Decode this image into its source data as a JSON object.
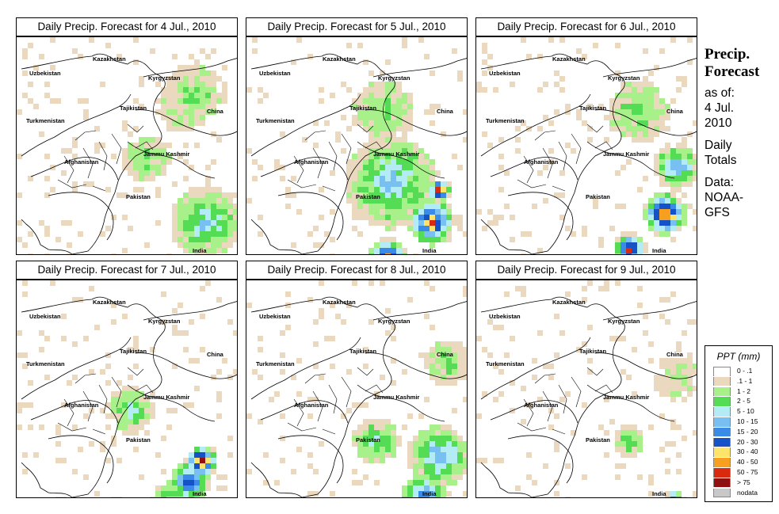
{
  "panels": [
    {
      "id": "p1",
      "title": "Daily Precip. Forecast for  4 Jul., 2010"
    },
    {
      "id": "p2",
      "title": "Daily Precip. Forecast for  5 Jul., 2010"
    },
    {
      "id": "p3",
      "title": "Daily Precip. Forecast for  6 Jul., 2010"
    },
    {
      "id": "p4",
      "title": "Daily Precip. Forecast for  7 Jul., 2010"
    },
    {
      "id": "p5",
      "title": "Daily Precip. Forecast for  8 Jul., 2010"
    },
    {
      "id": "p6",
      "title": "Daily Precip. Forecast for  9 Jul., 2010"
    }
  ],
  "map_labels": {
    "kazakhstan": "Kazakhstan",
    "uzbekistan": "Uzbekistan",
    "kyrgyzstan": "Kyrgyzstan",
    "tajikistan": "Tajikistan",
    "turkmenistan": "Turkmenistan",
    "china": "China",
    "jammu_kashmir": "Jammu Kashmir",
    "afghanistan": "Afghanistan",
    "pakistan": "Pakistan",
    "india": "India"
  },
  "sidebar": {
    "heading_line1": "Precip.",
    "heading_line2": "Forecast",
    "asof_line1": "as of:",
    "asof_line2": "4 Jul.",
    "asof_line3": "2010",
    "daily_line1": "Daily",
    "daily_line2": "Totals",
    "data_line1": "Data:",
    "data_line2": "NOAA-",
    "data_line3": "GFS"
  },
  "legend": {
    "title": "PPT (mm)",
    "items": [
      {
        "label": "0 - .1",
        "color": "#ffffff"
      },
      {
        "label": ".1 - 1",
        "color": "#ebd9bf"
      },
      {
        "label": "1 - 2",
        "color": "#a8f08a"
      },
      {
        "label": "2 - 5",
        "color": "#55dc55"
      },
      {
        "label": "5 - 10",
        "color": "#b3ecf5"
      },
      {
        "label": "10 - 15",
        "color": "#78c0f2"
      },
      {
        "label": "15 - 20",
        "color": "#3a8be8"
      },
      {
        "label": "20 - 30",
        "color": "#1552c8"
      },
      {
        "label": "30 - 40",
        "color": "#fde46a"
      },
      {
        "label": "40 - 50",
        "color": "#f7a020"
      },
      {
        "label": "50 - 75",
        "color": "#d92a10"
      },
      {
        "label": "> 75",
        "color": "#8e1010"
      },
      {
        "label": "nodata",
        "color": "#c8c8c8"
      }
    ]
  }
}
